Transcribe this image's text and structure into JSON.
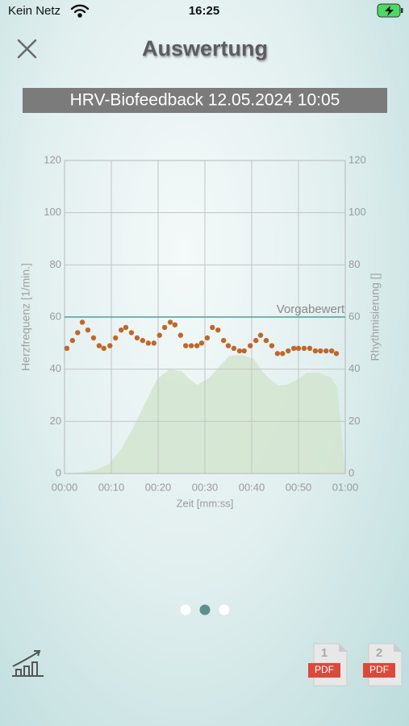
{
  "status_bar": {
    "carrier": "Kein Netz",
    "time": "16:25"
  },
  "header": {
    "title": "Auswertung",
    "session": "HRV-Biofeedback 12.05.2024 10:05"
  },
  "chart_data": {
    "type": "scatter",
    "xlabel": "Zeit [mm:ss]",
    "ylabel": "Herzfrequenz [1/min.]",
    "y2label": "Rhythmisierung []",
    "xlim": [
      0,
      60
    ],
    "xticks": [
      {
        "value": 0,
        "label": "00:00"
      },
      {
        "value": 10,
        "label": "00:10"
      },
      {
        "value": 20,
        "label": "00:20"
      },
      {
        "value": 30,
        "label": "00:30"
      },
      {
        "value": 40,
        "label": "00:40"
      },
      {
        "value": 50,
        "label": "00:50"
      },
      {
        "value": 60,
        "label": "01:00"
      }
    ],
    "ylim": [
      0,
      120
    ],
    "yticks": [
      0,
      20,
      40,
      60,
      80,
      100,
      120
    ],
    "y2lim": [
      0,
      120
    ],
    "y2ticks": [
      0,
      20,
      40,
      60,
      80,
      100,
      120
    ],
    "grid": true,
    "reference": {
      "label": "Vorgabewert",
      "value": 60,
      "color": "#4f9c9c"
    },
    "series": [
      {
        "type": "area",
        "axis": "y2",
        "color": "#d2e5cf",
        "x": [
          0,
          4.3,
          6.9,
          9.5,
          12.1,
          14.7,
          17.2,
          19.8,
          22.4,
          25.0,
          26.7,
          28.4,
          31.0,
          32.8,
          35.3,
          37.9,
          40.5,
          42.2,
          43.9,
          45.7,
          47.4,
          50.0,
          51.7,
          54.3,
          56.9,
          58.3,
          60
        ],
        "values": [
          0,
          0.6,
          1.5,
          3.7,
          9.3,
          17.6,
          26.9,
          36.2,
          39.9,
          39.3,
          36.2,
          34.0,
          36.8,
          40.5,
          45.2,
          45.5,
          43.9,
          39.3,
          36.2,
          33.7,
          34.0,
          36.2,
          38.7,
          38.7,
          36.8,
          33.1,
          0
        ]
      },
      {
        "type": "scatter",
        "color": "#c0672a",
        "x": [
          0.5,
          1.7,
          2.8,
          3.8,
          5.0,
          6.2,
          7.4,
          8.4,
          9.7,
          10.9,
          12.1,
          13.1,
          14.3,
          15.5,
          16.7,
          17.9,
          19.1,
          20.3,
          21.4,
          22.6,
          23.6,
          24.8,
          25.9,
          27.1,
          28.3,
          29.3,
          30.5,
          31.6,
          32.8,
          34.0,
          35.0,
          36.2,
          37.4,
          38.4,
          39.7,
          40.9,
          41.9,
          43.1,
          44.3,
          45.5,
          46.6,
          47.8,
          49.0,
          50.0,
          51.2,
          52.4,
          53.6,
          54.7,
          55.9,
          57.1,
          58.1
        ],
        "values": [
          48,
          51,
          54,
          58,
          55,
          52,
          49,
          48,
          49,
          52,
          55,
          56,
          54,
          52,
          51,
          50,
          50,
          53,
          56,
          58,
          57,
          53,
          49,
          49,
          49,
          50,
          52,
          56,
          55,
          51,
          49,
          48,
          47,
          47,
          49,
          51,
          53,
          51,
          49,
          46,
          46,
          47,
          48,
          48,
          48,
          48,
          47,
          47,
          47,
          47,
          46
        ]
      }
    ]
  },
  "footer": {
    "pdf_label": "PDF",
    "pdf_pages": [
      "1",
      "2"
    ]
  }
}
